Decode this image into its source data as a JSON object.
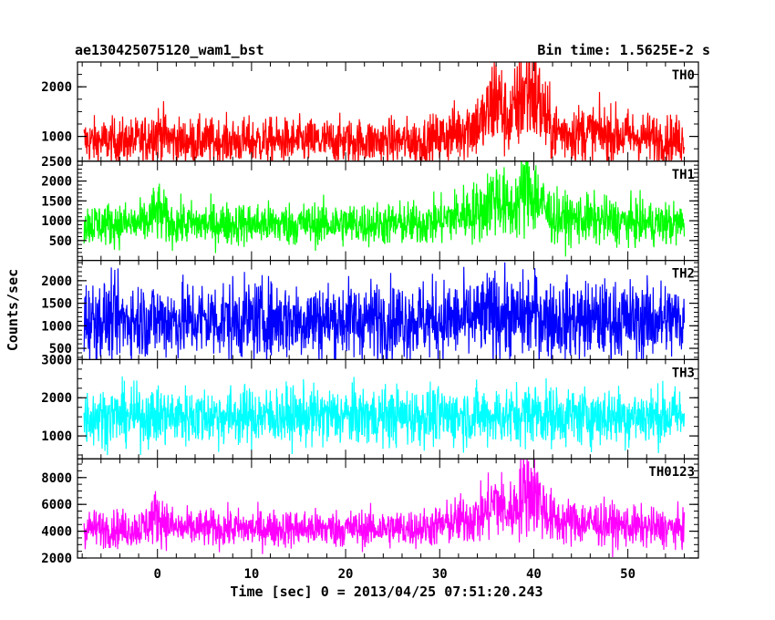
{
  "header": {
    "title": "ae130425075120_wam1_bst",
    "bin_time": "Bin time: 1.5625E-2 s"
  },
  "axes": {
    "ylabel": "Counts/sec",
    "xlabel": "Time [sec] 0 = 2013/04/25 07:51:20.243"
  },
  "chart_data": {
    "type": "line",
    "title": "ae130425075120_wam1_bst",
    "xlabel": "Time [sec] 0 = 2013/04/25 07:51:20.243",
    "ylabel": "Counts/sec",
    "xlim": [
      -8.5,
      57.5
    ],
    "data_x_range": [
      -7.8,
      56
    ],
    "x_ticks": [
      0,
      10,
      20,
      30,
      40,
      50
    ],
    "x_minor_step": 2,
    "panels": [
      {
        "name": "TH0",
        "color": "#ff0000",
        "ylim": [
          500,
          2500
        ],
        "y_ticks": [
          1000,
          2000
        ],
        "y_tick_labels": [
          "1000",
          "2000"
        ],
        "bottom_label": "2500",
        "minor_step": 250,
        "baseline": 900,
        "noise": 230,
        "bumps": [
          {
            "t": 0,
            "amp": 180,
            "w": 0.8
          },
          {
            "t": 34.5,
            "amp": 350,
            "w": 2.5
          },
          {
            "t": 36,
            "amp": 550,
            "w": 0.6
          },
          {
            "t": 39.5,
            "amp": 950,
            "w": 1.2
          },
          {
            "t": 44,
            "amp": 150,
            "w": 4
          },
          {
            "t": 50,
            "amp": 60,
            "w": 4
          }
        ]
      },
      {
        "name": "TH1",
        "color": "#00ff00",
        "ylim": [
          0,
          2500
        ],
        "y_ticks": [
          500,
          1000,
          1500,
          2000
        ],
        "y_tick_labels": [
          "500",
          "1000",
          "1500",
          "2000"
        ],
        "minor_step": 100,
        "baseline": 920,
        "noise": 270,
        "bumps": [
          {
            "t": 0,
            "amp": 300,
            "w": 0.6
          },
          {
            "t": 34,
            "amp": 300,
            "w": 2.5
          },
          {
            "t": 36,
            "amp": 450,
            "w": 0.7
          },
          {
            "t": 39.5,
            "amp": 750,
            "w": 1.2
          },
          {
            "t": 44,
            "amp": 120,
            "w": 4
          }
        ]
      },
      {
        "name": "TH2",
        "color": "#0000ff",
        "ylim": [
          250,
          2450
        ],
        "y_ticks": [
          500,
          1000,
          1500,
          2000
        ],
        "y_tick_labels": [
          "500",
          "1000",
          "1500",
          "2000"
        ],
        "minor_step": 100,
        "baseline": 1130,
        "noise": 430,
        "bumps": [
          {
            "t": 36,
            "amp": 150,
            "w": 1
          },
          {
            "t": 40,
            "amp": 120,
            "w": 1
          }
        ]
      },
      {
        "name": "TH3",
        "color": "#00ffff",
        "ylim": [
          400,
          3000
        ],
        "y_ticks": [
          1000,
          2000,
          3000
        ],
        "y_tick_labels": [
          "1000",
          "2000",
          "3000"
        ],
        "minor_step": 250,
        "baseline": 1520,
        "noise": 380,
        "bumps": [
          {
            "t": 40,
            "amp": 100,
            "w": 1
          }
        ]
      },
      {
        "name": "TH0123",
        "color": "#ff00ff",
        "ylim": [
          2000,
          9400
        ],
        "y_ticks": [
          2000,
          4000,
          6000,
          8000
        ],
        "y_tick_labels": [
          "2000",
          "4000",
          "6000",
          "8000"
        ],
        "minor_step": 500,
        "baseline": 4200,
        "noise": 700,
        "bumps": [
          {
            "t": 0,
            "amp": 900,
            "w": 0.8
          },
          {
            "t": 34,
            "amp": 800,
            "w": 2.5
          },
          {
            "t": 36,
            "amp": 1300,
            "w": 0.7
          },
          {
            "t": 39.5,
            "amp": 2600,
            "w": 1.2
          },
          {
            "t": 44,
            "amp": 500,
            "w": 4
          }
        ]
      }
    ]
  }
}
